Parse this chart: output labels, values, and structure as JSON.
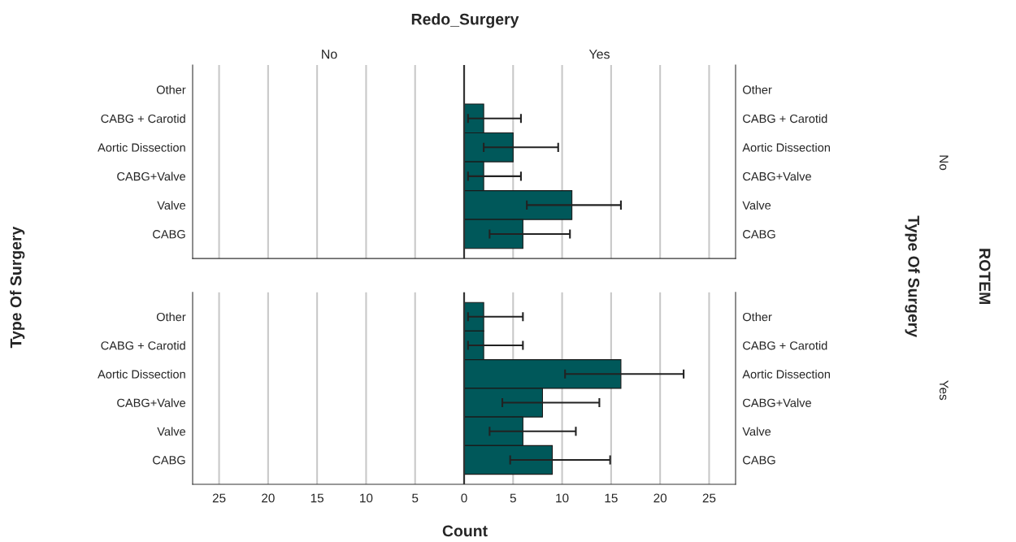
{
  "chart_data": [
    {
      "type": "bar",
      "orientation": "horizontal",
      "ylabel": "Type Of Surgery",
      "y2label": "Type Of Surgery",
      "annotations": [
        "Redo_Surgery",
        "No",
        "Yes",
        "ROTEM",
        "No"
      ],
      "categories": [
        "Other",
        "CABG + Carotid",
        "Aortic Dissection",
        "CABG+Valve",
        "Valve",
        "CABG"
      ],
      "values": [
        0,
        2,
        5,
        2,
        11,
        6
      ],
      "errors": [
        null,
        [
          0.4,
          5.8
        ],
        [
          2.0,
          9.6
        ],
        [
          0.4,
          5.8
        ],
        [
          6.4,
          16.0
        ],
        [
          2.6,
          10.8
        ]
      ],
      "color": "#00585a",
      "xlim": [
        -27.7,
        27.7
      ],
      "xticks": [
        {
          "value": -25,
          "label": null
        },
        {
          "value": -20,
          "label": null
        },
        {
          "value": -15,
          "label": null
        },
        {
          "value": -10,
          "label": null
        },
        {
          "value": -5,
          "label": null
        },
        {
          "value": 0,
          "label": null
        },
        {
          "value": 5,
          "label": null
        },
        {
          "value": 10,
          "label": null
        },
        {
          "value": 15,
          "label": null
        },
        {
          "value": 20,
          "label": null
        },
        {
          "value": 25,
          "label": null
        }
      ],
      "ref_lines": [
        {
          "axis": "x",
          "value": 0
        }
      ],
      "grid": "x",
      "tick_labels": "y"
    },
    {
      "type": "bar",
      "orientation": "horizontal",
      "xlabel": "Count",
      "annotations": [
        "Yes"
      ],
      "categories": [
        "Other",
        "CABG + Carotid",
        "Aortic Dissection",
        "CABG+Valve",
        "Valve",
        "CABG"
      ],
      "values": [
        2,
        2,
        16,
        8,
        6,
        9
      ],
      "errors": [
        [
          0.4,
          6.0
        ],
        [
          0.4,
          6.0
        ],
        [
          10.3,
          22.4
        ],
        [
          3.9,
          13.8
        ],
        [
          2.6,
          11.4
        ],
        [
          4.7,
          14.9
        ]
      ],
      "color": "#00585a",
      "xlim": [
        -27.7,
        27.7
      ],
      "xticks": [
        {
          "value": -25,
          "label": "25"
        },
        {
          "value": -20,
          "label": "20"
        },
        {
          "value": -15,
          "label": "15"
        },
        {
          "value": -10,
          "label": "10"
        },
        {
          "value": -5,
          "label": "5"
        },
        0,
        5,
        10,
        15,
        20,
        25
      ],
      "ref_lines": [
        {
          "axis": "x",
          "value": 0
        }
      ],
      "grid": "x"
    }
  ]
}
